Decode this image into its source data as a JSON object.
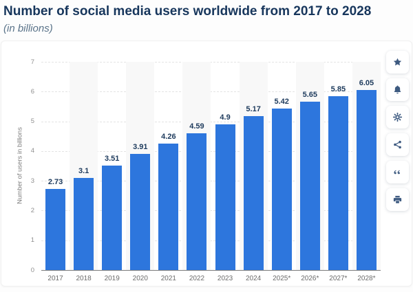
{
  "header": {
    "title": "Number of social media users worldwide from 2017 to 2028",
    "subtitle": "(in billions)"
  },
  "chart_data": {
    "type": "bar",
    "title": "Number of social media users worldwide from 2017 to 2028",
    "subtitle": "(in billions)",
    "categories": [
      "2017",
      "2018",
      "2019",
      "2020",
      "2021",
      "2022",
      "2023",
      "2024",
      "2025*",
      "2026*",
      "2027*",
      "2028*"
    ],
    "values": [
      2.73,
      3.1,
      3.51,
      3.91,
      4.26,
      4.59,
      4.9,
      5.17,
      5.42,
      5.65,
      5.85,
      6.05
    ],
    "xlabel": "",
    "ylabel": "Number of users in billions",
    "ylim": [
      0,
      7
    ],
    "yticks": [
      0,
      1,
      2,
      3,
      4,
      5,
      6,
      7
    ],
    "grid": "horizontal-dashed",
    "legend": "none",
    "bar_color": "#2d76dd",
    "stripe_color": "#f8f8f8",
    "value_label_color": "#1d3a5c"
  },
  "toolbar": {
    "buttons": [
      {
        "icon": "star",
        "label": "favorite"
      },
      {
        "icon": "bell",
        "label": "alert"
      },
      {
        "icon": "gear",
        "label": "settings"
      },
      {
        "icon": "share",
        "label": "share"
      },
      {
        "icon": "quote",
        "label": "cite"
      },
      {
        "icon": "printer",
        "label": "print"
      }
    ]
  },
  "colors": {
    "title": "#17365c",
    "subtitle": "#5a7389",
    "icon": "#3d5a80"
  }
}
